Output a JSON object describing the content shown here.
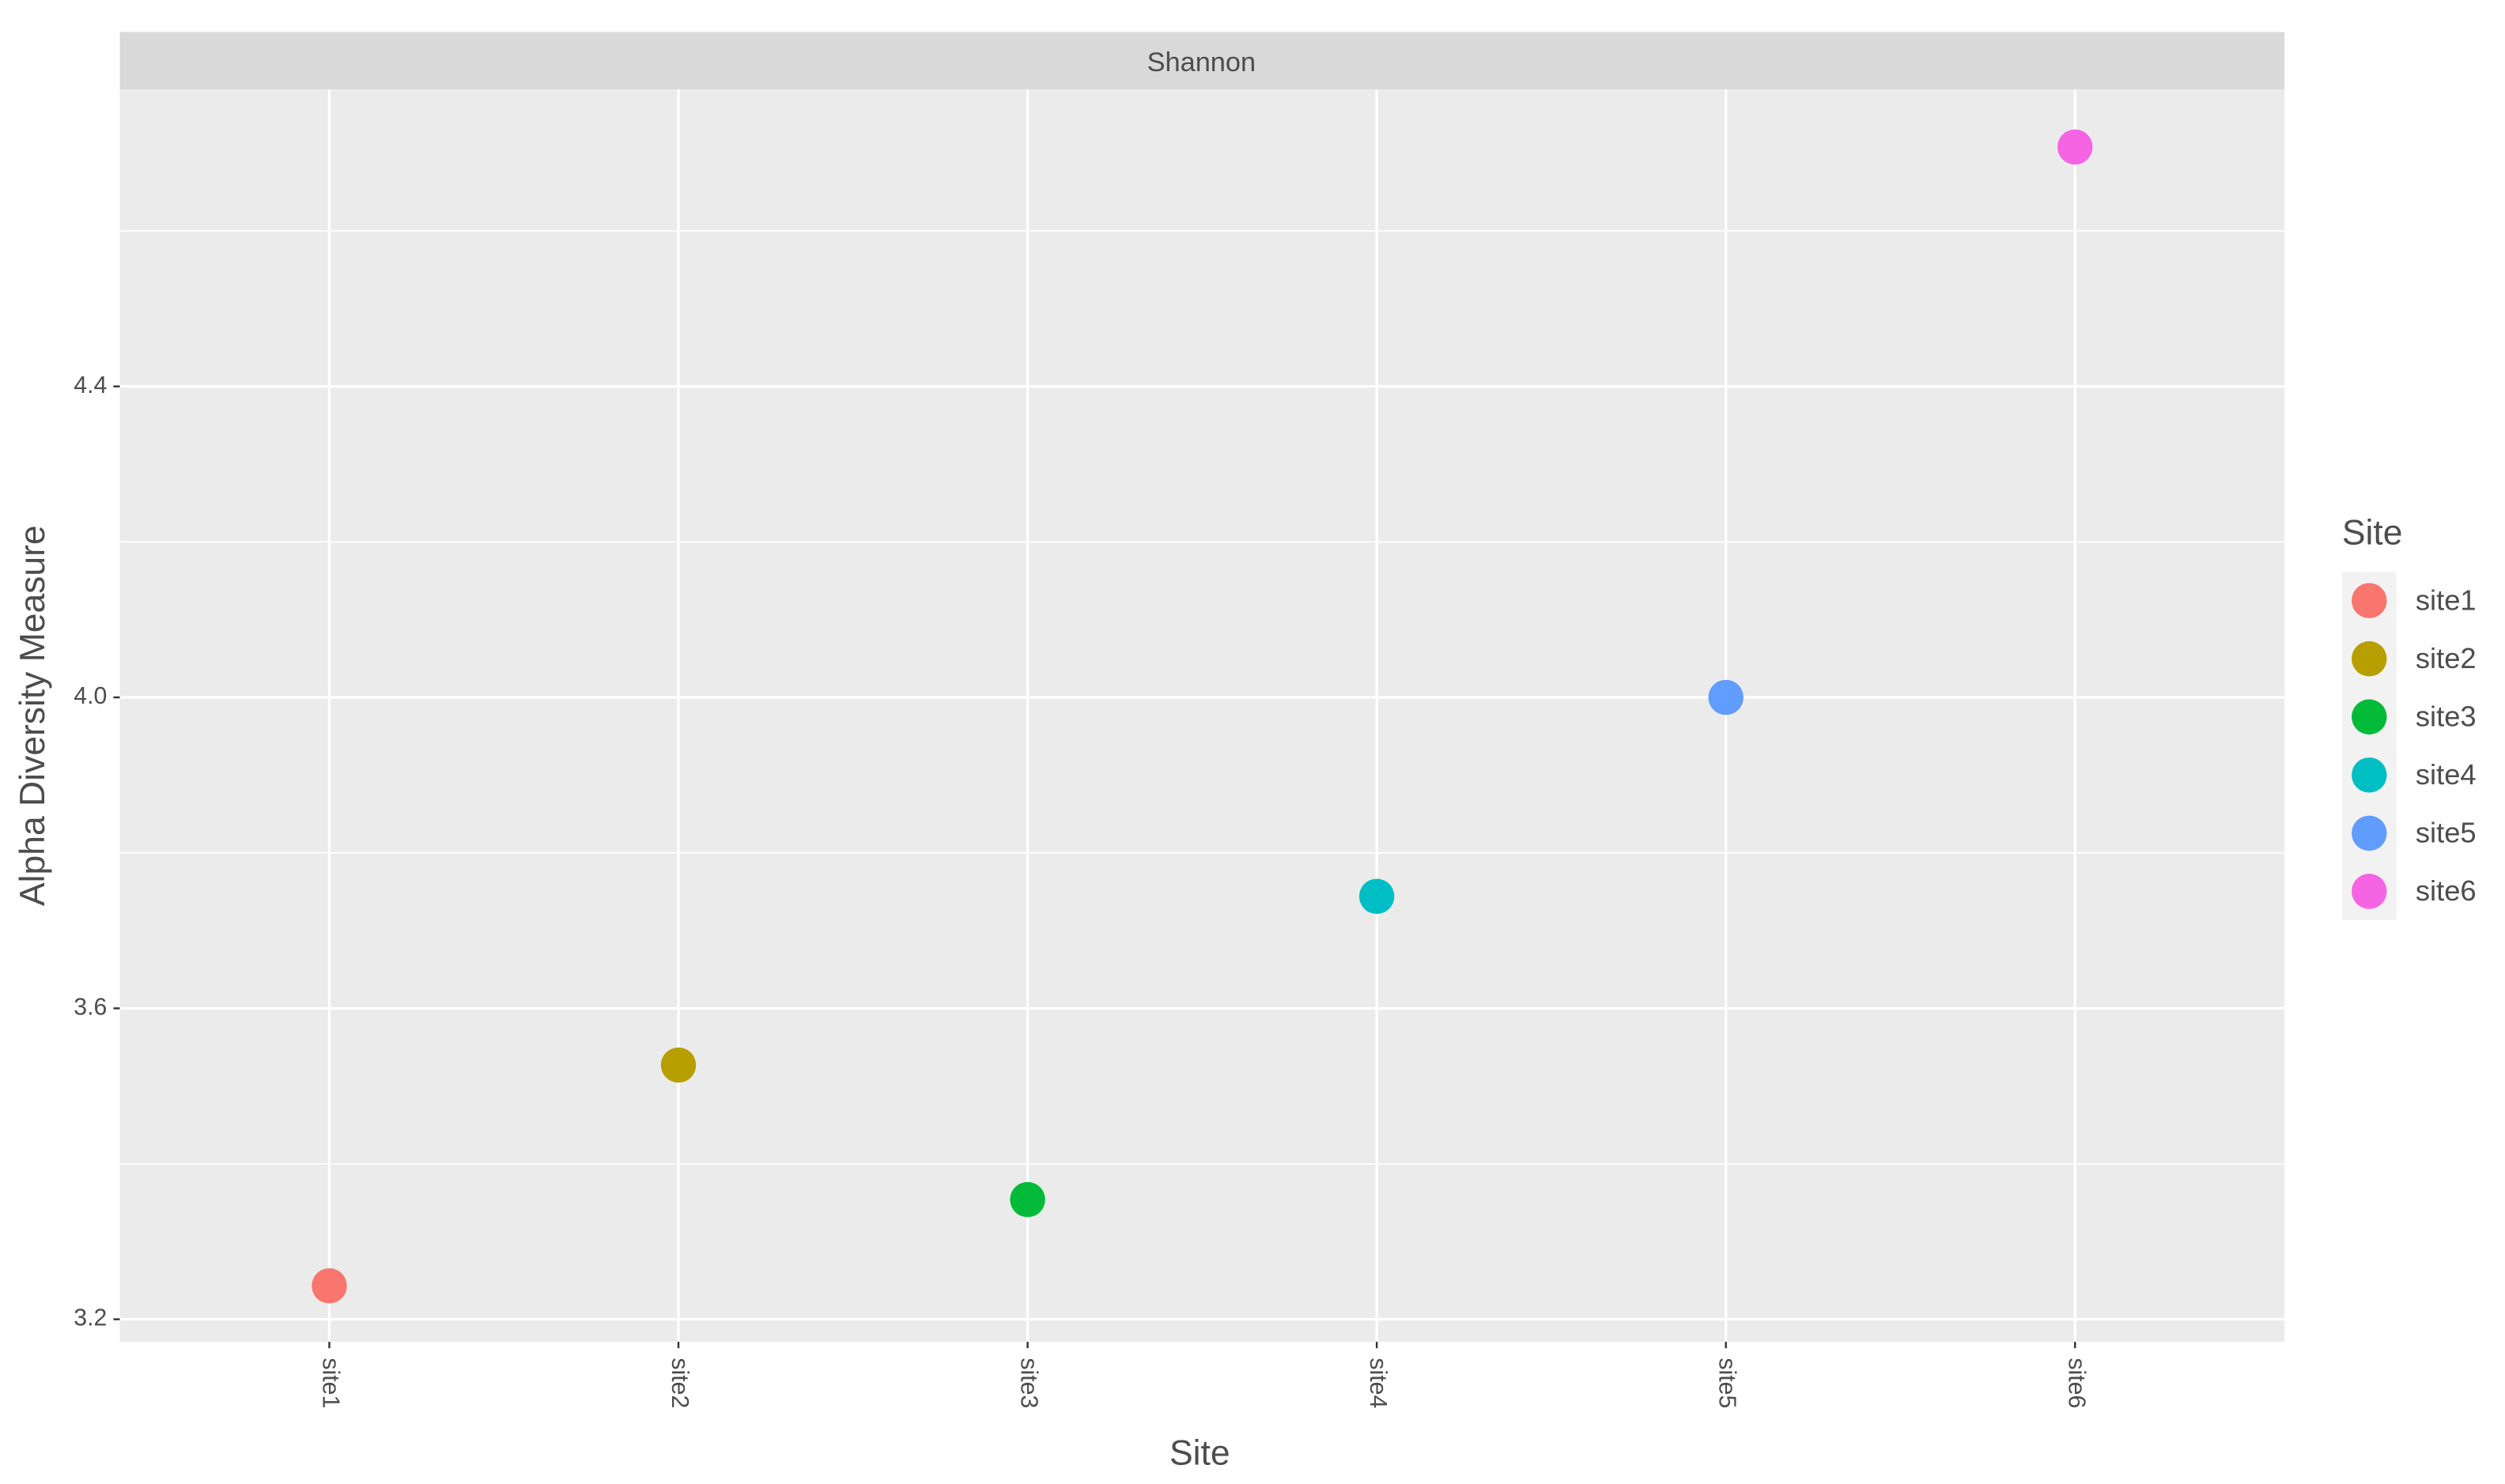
{
  "chart_data": {
    "type": "scatter",
    "facet": "Shannon",
    "x_label": "Site",
    "y_label": "Alpha Diversity Measure",
    "legend_title": "Site",
    "categories": [
      "site1",
      "site2",
      "site3",
      "site4",
      "site5",
      "site6"
    ],
    "values": [
      3.243,
      3.527,
      3.354,
      3.744,
      4.0,
      4.708
    ],
    "colors": [
      "#F8766D",
      "#B79F00",
      "#00BA38",
      "#00BFC4",
      "#619CFF",
      "#F564E3"
    ],
    "ylim": [
      3.171,
      4.782
    ],
    "yticks": [
      3.2,
      3.6,
      {
        "value": 4,
        "label": "4.0"
      },
      4.4
    ],
    "minor_yticks": [
      3.4,
      3.8,
      4.2,
      4.6
    ],
    "grid": true,
    "legend": "right"
  }
}
